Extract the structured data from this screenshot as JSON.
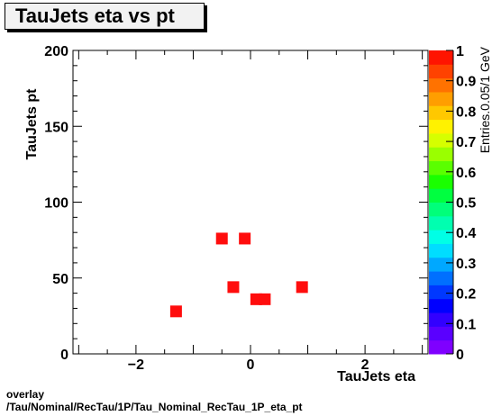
{
  "title": "TauJets eta vs pt",
  "footer": {
    "line1": "overlay",
    "line2": "/Tau/Nominal/RecTau/1P/Tau_Nominal_RecTau_1P_eta_pt"
  },
  "chart_data": {
    "type": "heatmap",
    "title": "TauJets eta vs pt",
    "xlabel": "TauJets eta",
    "ylabel": "TauJets pt",
    "zlabel": "Entries.0.05/1 GeV",
    "xlim": [
      -3.1,
      3.1
    ],
    "ylim": [
      0,
      200
    ],
    "zlim": [
      0,
      1
    ],
    "x_ticks": [
      {
        "v": -2,
        "label": "−2"
      },
      {
        "v": 0,
        "label": "0"
      },
      {
        "v": 2,
        "label": "2"
      }
    ],
    "y_ticks": [
      0,
      50,
      100,
      150,
      200
    ],
    "z_ticks": [
      "0",
      "0.1",
      "0.2",
      "0.3",
      "0.4",
      "0.5",
      "0.6",
      "0.7",
      "0.8",
      "0.9",
      "1"
    ],
    "cell_color": "#ff0d0d",
    "points": [
      {
        "eta": -1.3,
        "pt": 28,
        "entries": 1
      },
      {
        "eta": -0.5,
        "pt": 76,
        "entries": 1
      },
      {
        "eta": -0.1,
        "pt": 76,
        "entries": 1
      },
      {
        "eta": -0.3,
        "pt": 44,
        "entries": 1
      },
      {
        "eta": 0.1,
        "pt": 36,
        "entries": 1
      },
      {
        "eta": 0.25,
        "pt": 36,
        "entries": 1
      },
      {
        "eta": 0.9,
        "pt": 44,
        "entries": 1
      }
    ],
    "palette": [
      "#7f00ff",
      "#5a00ff",
      "#3200ff",
      "#0000ff",
      "#0038ff",
      "#0070ff",
      "#00a8ff",
      "#00ddff",
      "#00ffe6",
      "#00ffb0",
      "#00ff7a",
      "#00ff40",
      "#1aff00",
      "#5aff00",
      "#9aff00",
      "#d6ff00",
      "#fff200",
      "#ffc800",
      "#ff9e00",
      "#ff7200",
      "#ff4200",
      "#ff1400"
    ]
  }
}
